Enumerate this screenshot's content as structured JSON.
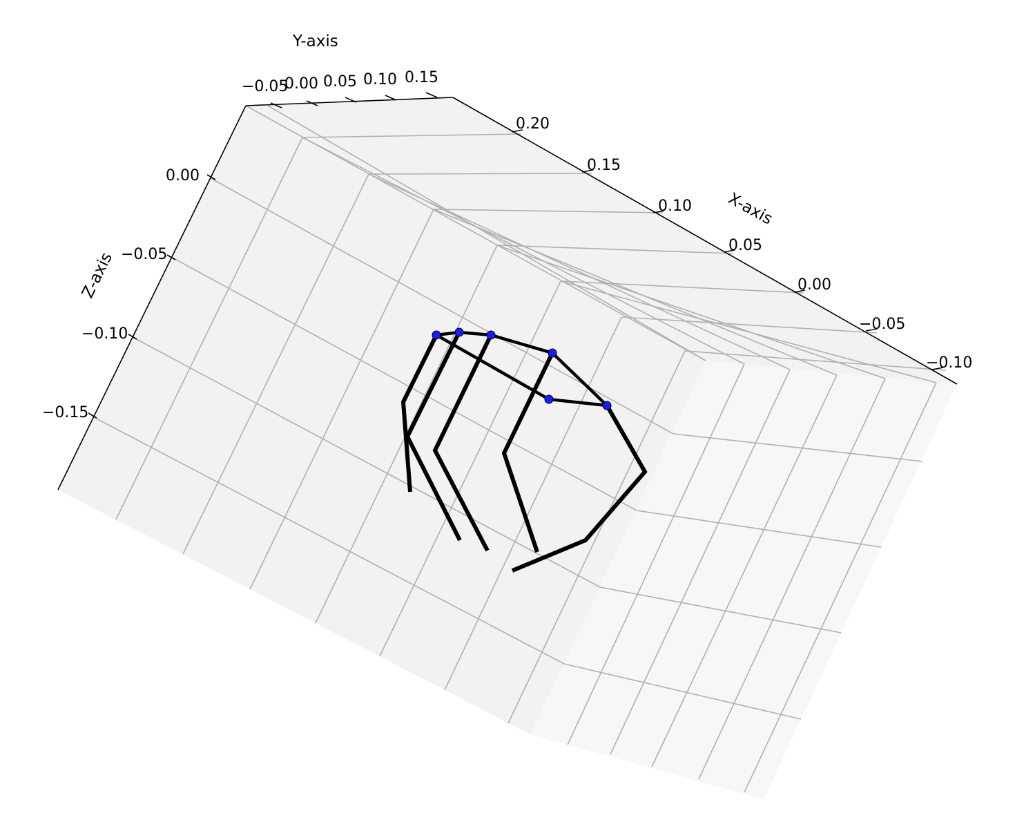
{
  "chart_data": {
    "type": "line3d",
    "title": "",
    "xlabel": "X-axis",
    "ylabel": "Y-axis",
    "zlabel": "Z-axis",
    "x_ticks": [
      "0.20",
      "0.15",
      "0.10",
      "0.05",
      "0.00",
      "−0.05",
      "−0.10"
    ],
    "y_ticks": [
      "−0.05",
      "0.00",
      "0.05",
      "0.10",
      "0.15"
    ],
    "z_ticks": [
      "0.00",
      "−0.05",
      "−0.10",
      "−0.15"
    ],
    "grid": true,
    "pane_color": "#f2f2f2",
    "line_color": "#000000",
    "marker_color": "#1a1aff",
    "series": [
      {
        "values": [
          [
            0.055,
            0.01,
            -0.13
          ],
          [
            0.045,
            -0.01,
            -0.12
          ],
          [
            0.03,
            0.02,
            -0.095
          ]
        ]
      },
      {
        "values": [
          [
            0.06,
            0.02,
            -0.13
          ],
          [
            0.05,
            0.02,
            -0.115
          ],
          [
            0.04,
            0.0,
            -0.085
          ]
        ]
      },
      {
        "values": [
          [
            0.07,
            0.03,
            -0.135
          ],
          [
            0.06,
            0.03,
            -0.115
          ],
          [
            0.045,
            0.01,
            -0.08
          ]
        ]
      },
      {
        "values": [
          [
            0.08,
            0.05,
            -0.15
          ],
          [
            0.075,
            0.05,
            -0.13
          ],
          [
            0.06,
            0.02,
            -0.08
          ]
        ]
      },
      {
        "values": [
          [
            0.09,
            0.08,
            -0.16
          ],
          [
            0.095,
            0.08,
            -0.135
          ],
          [
            0.09,
            0.09,
            -0.11
          ]
        ]
      }
    ],
    "palm": [
      [
        0.03,
        0.02,
        -0.095
      ],
      [
        0.04,
        0.0,
        -0.085
      ],
      [
        0.045,
        0.01,
        -0.08
      ],
      [
        0.06,
        0.02,
        -0.08
      ],
      [
        0.07,
        0.05,
        -0.1
      ],
      [
        0.09,
        0.09,
        -0.11
      ]
    ]
  }
}
